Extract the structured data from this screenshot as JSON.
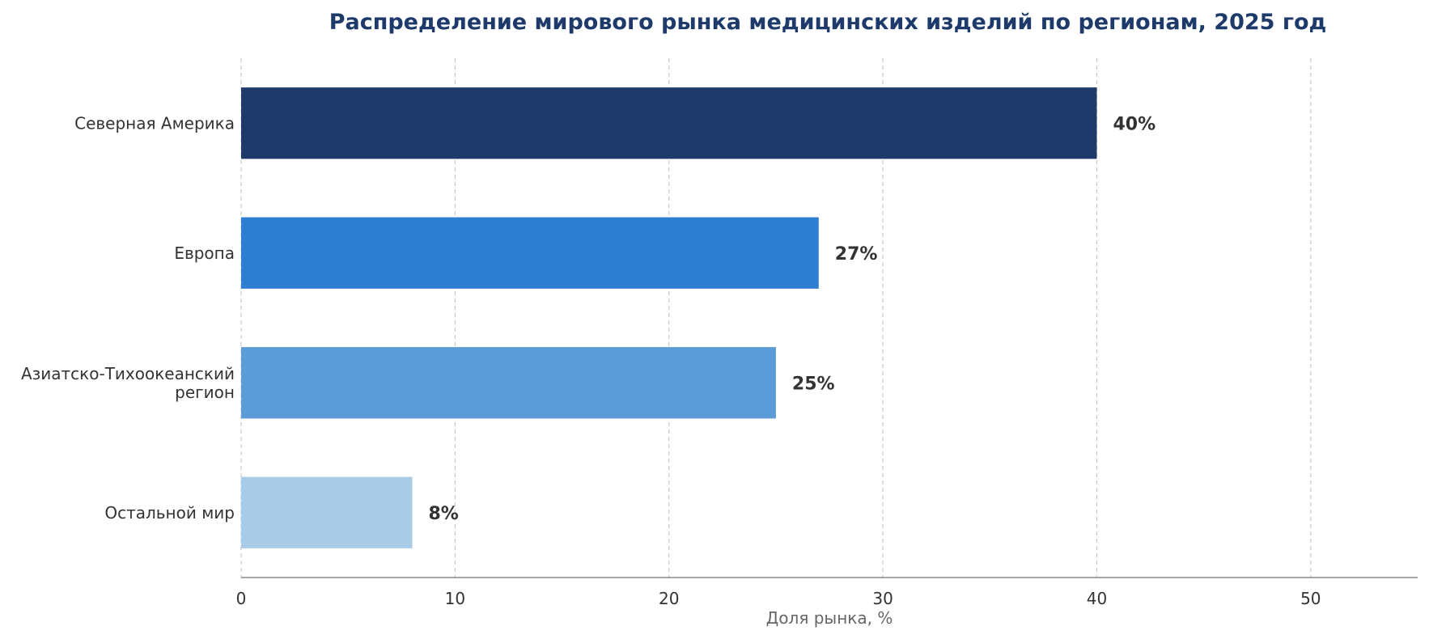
{
  "chart_data": {
    "type": "bar",
    "orientation": "horizontal",
    "title": "Распределение мирового рынка медицинских изделий по регионам, 2025 год",
    "xlabel": "Доля рынка, %",
    "ylabel": "",
    "xlim": [
      0,
      55
    ],
    "xticks": [
      0,
      10,
      20,
      30,
      40,
      50
    ],
    "grid": "vertical-dashed",
    "categories": [
      [
        "Северная Америка"
      ],
      [
        "Европа"
      ],
      [
        "Азиатско-Тихоокеанский",
        "регион"
      ],
      [
        "Остальной мир"
      ]
    ],
    "values": [
      40,
      27,
      25,
      8
    ],
    "data_labels": [
      "40%",
      "27%",
      "25%",
      "8%"
    ],
    "colors": [
      "#1d3a6b",
      "#2e7fd3",
      "#5b9bd8",
      "#a8cbe8"
    ]
  }
}
